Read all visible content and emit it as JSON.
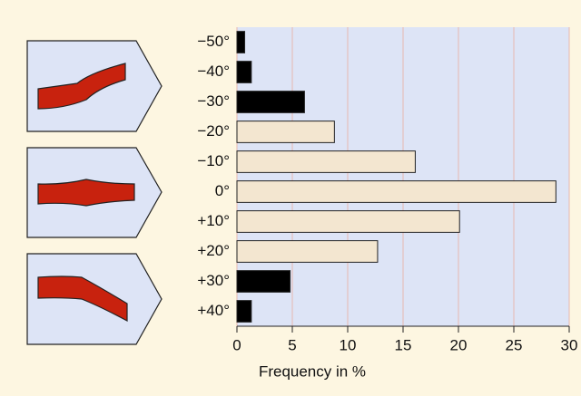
{
  "chart_data": {
    "type": "barh",
    "categories": [
      "−50°",
      "−40°",
      "−30°",
      "−20°",
      "−10°",
      "0°",
      "+10°",
      "+20°",
      "+30°",
      "+40°"
    ],
    "values": [
      0.7,
      1.3,
      6.1,
      8.8,
      16.1,
      28.8,
      20.1,
      12.7,
      4.8,
      1.3
    ],
    "colors": [
      "#000000",
      "#000000",
      "#000000",
      "#f3e6d0",
      "#f3e6d0",
      "#f3e6d0",
      "#f3e6d0",
      "#f3e6d0",
      "#000000",
      "#000000"
    ],
    "xlabel": "Frequency in %",
    "xlim": [
      0,
      30
    ],
    "xticks": [
      0,
      5,
      10,
      15,
      20,
      25,
      30
    ],
    "grid": true
  }
}
